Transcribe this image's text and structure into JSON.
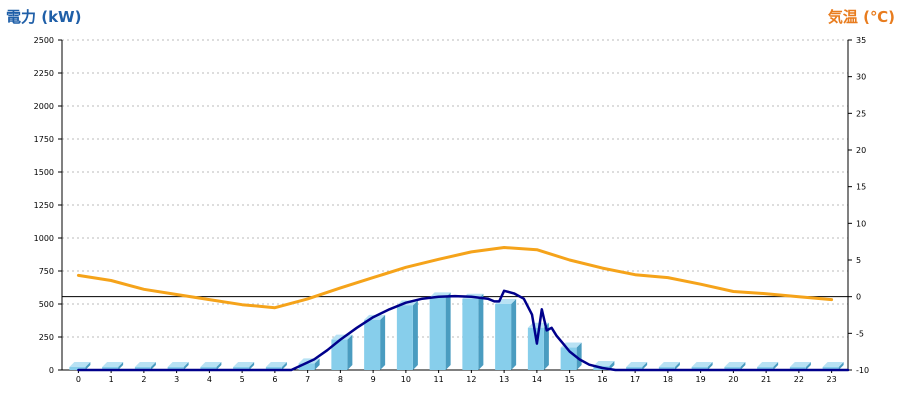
{
  "chart_data": {
    "type": "bar+line",
    "colors": {
      "bar_front": "#87CEEB",
      "bar_side": "#4A9CC0",
      "bar_top": "#B8E2F4",
      "power_line": "#00008B",
      "temp_line": "#F5A31A",
      "left_title": "#1F5FA8",
      "right_title": "#E87C1E",
      "grid": "#BBBBBB"
    },
    "left_axis": {
      "title": "電力 (kW)",
      "ylim": [
        0,
        2500
      ],
      "ticks": [
        "0",
        "250",
        "500",
        "750",
        "1000",
        "1250",
        "1500",
        "1750",
        "2000",
        "2250",
        "2500"
      ]
    },
    "right_axis": {
      "title": "気温 (℃)",
      "ylim": [
        -10,
        35
      ],
      "ticks": [
        "-10",
        "-5",
        "0",
        "5",
        "10",
        "15",
        "20",
        "25",
        "30",
        "35"
      ],
      "zero_line": 0
    },
    "categories": [
      "0",
      "1",
      "2",
      "3",
      "4",
      "5",
      "6",
      "7",
      "8",
      "9",
      "10",
      "11",
      "12",
      "13",
      "14",
      "15",
      "16",
      "17",
      "18",
      "19",
      "20",
      "21",
      "22",
      "23"
    ],
    "bars": {
      "axis": "left",
      "values": [
        0,
        0,
        0,
        0,
        0,
        0,
        0,
        50,
        230,
        380,
        490,
        550,
        540,
        500,
        320,
        170,
        30,
        0,
        0,
        0,
        0,
        0,
        0,
        0
      ]
    },
    "power_line": {
      "axis": "left",
      "points": [
        [
          0,
          0
        ],
        [
          6.5,
          0
        ],
        [
          7.2,
          80
        ],
        [
          7.6,
          150
        ],
        [
          8,
          230
        ],
        [
          8.5,
          320
        ],
        [
          9,
          400
        ],
        [
          9.5,
          460
        ],
        [
          10,
          510
        ],
        [
          10.5,
          540
        ],
        [
          11,
          555
        ],
        [
          11.5,
          560
        ],
        [
          12,
          555
        ],
        [
          12.5,
          540
        ],
        [
          12.7,
          520
        ],
        [
          12.85,
          520
        ],
        [
          13,
          600
        ],
        [
          13.3,
          580
        ],
        [
          13.6,
          540
        ],
        [
          13.85,
          420
        ],
        [
          14,
          200
        ],
        [
          14.15,
          460
        ],
        [
          14.3,
          300
        ],
        [
          14.45,
          320
        ],
        [
          14.6,
          260
        ],
        [
          14.8,
          200
        ],
        [
          15,
          140
        ],
        [
          15.3,
          80
        ],
        [
          15.6,
          40
        ],
        [
          16,
          15
        ],
        [
          16.4,
          0
        ],
        [
          23.5,
          0
        ]
      ]
    },
    "temp_line": {
      "axis": "right",
      "points": [
        [
          0,
          2.9
        ],
        [
          1,
          2.2
        ],
        [
          2,
          1.0
        ],
        [
          3,
          0.3
        ],
        [
          4,
          -0.4
        ],
        [
          5,
          -1.1
        ],
        [
          6,
          -1.5
        ],
        [
          7,
          -0.3
        ],
        [
          8,
          1.2
        ],
        [
          9,
          2.6
        ],
        [
          10,
          4.0
        ],
        [
          11,
          5.1
        ],
        [
          12,
          6.1
        ],
        [
          13,
          6.7
        ],
        [
          14,
          6.4
        ],
        [
          15,
          5.0
        ],
        [
          16,
          3.9
        ],
        [
          17,
          3.0
        ],
        [
          18,
          2.6
        ],
        [
          19,
          1.7
        ],
        [
          20,
          0.7
        ],
        [
          21,
          0.4
        ],
        [
          22,
          0.0
        ],
        [
          23,
          -0.4
        ]
      ]
    }
  }
}
